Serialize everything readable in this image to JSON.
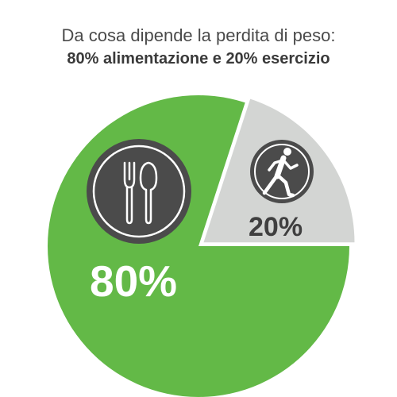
{
  "header": {
    "title": "Da cosa dipende la perdita di peso:",
    "subtitle": "80% alimentazione e 20% esercizio"
  },
  "colors": {
    "food": "#63b947",
    "exercise": "#d3d5d3",
    "icon_circle": "#4b4b4b",
    "icon_ring": "#ffffff"
  },
  "chart_data": {
    "type": "pie",
    "categories": [
      "alimentazione",
      "esercizio"
    ],
    "values": [
      80,
      20
    ],
    "labels": [
      "80%",
      "20%"
    ],
    "icons": [
      "fork-knife-icon",
      "running-man-icon"
    ],
    "title": "Da cosa dipende la perdita di peso:",
    "subtitle": "80% alimentazione e 20% esercizio"
  }
}
